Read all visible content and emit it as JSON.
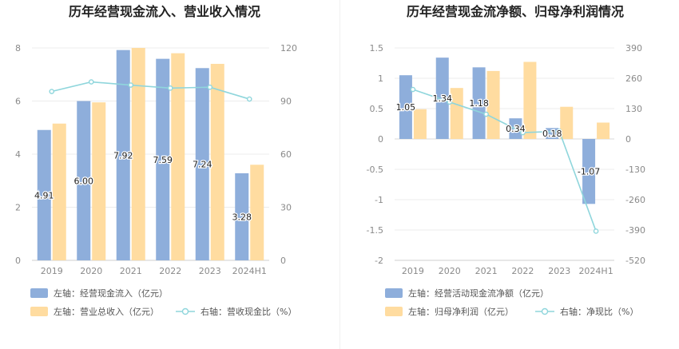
{
  "chart_data": [
    {
      "type": "bar",
      "title": "历年经营现金流入、营业收入情况",
      "categories": [
        "2019",
        "2020",
        "2021",
        "2022",
        "2023",
        "2024H1"
      ],
      "y_left": {
        "min": 0,
        "max": 8,
        "ticks": [
          0,
          2,
          4,
          6,
          8
        ]
      },
      "y_right": {
        "min": 0,
        "max": 120,
        "ticks": [
          0,
          30,
          60,
          90,
          120
        ]
      },
      "series": [
        {
          "name": "左轴：经营现金流入（亿元）",
          "kind": "bar",
          "axis": "left",
          "color": "#8eaedb",
          "values": [
            4.91,
            6.0,
            7.92,
            7.59,
            7.24,
            3.28
          ],
          "labels": [
            "4.91",
            "6.00",
            "7.92",
            "7.59",
            "7.24",
            "3.28"
          ]
        },
        {
          "name": "左轴：营业总收入（亿元）",
          "kind": "bar",
          "axis": "left",
          "color": "#ffdca0",
          "values": [
            5.15,
            5.95,
            8.0,
            7.8,
            7.4,
            3.6
          ]
        },
        {
          "name": "右轴：营收现金比（%）",
          "kind": "line",
          "axis": "right",
          "color": "#8fd6dc",
          "values": [
            95.4,
            100.8,
            99.0,
            97.3,
            97.8,
            91.1
          ]
        }
      ]
    },
    {
      "type": "bar",
      "title": "历年经营现金流净额、归母净利润情况",
      "categories": [
        "2019",
        "2020",
        "2021",
        "2022",
        "2023",
        "2024H1"
      ],
      "y_left": {
        "min": -2,
        "max": 1.5,
        "ticks": [
          -2,
          -1.5,
          -1,
          -0.5,
          0,
          0.5,
          1,
          1.5
        ]
      },
      "y_right": {
        "min": -520,
        "max": 390,
        "ticks": [
          -520,
          -390,
          -260,
          -130,
          0,
          130,
          260,
          390
        ]
      },
      "series": [
        {
          "name": "左轴：经营活动现金流净额（亿元）",
          "kind": "bar",
          "axis": "left",
          "color": "#8eaedb",
          "values": [
            1.05,
            1.34,
            1.18,
            0.34,
            0.18,
            -1.07
          ],
          "labels": [
            "1.05",
            "1.34",
            "1.18",
            "0.34",
            "0.18",
            "-1.07"
          ]
        },
        {
          "name": "左轴：归母净利润（亿元）",
          "kind": "bar",
          "axis": "left",
          "color": "#ffdca0",
          "values": [
            0.49,
            0.84,
            1.12,
            1.27,
            0.53,
            0.27
          ]
        },
        {
          "name": "右轴：净现比（%）",
          "kind": "line",
          "axis": "right",
          "color": "#8fd6dc",
          "values": [
            212,
            158,
            106,
            27,
            33,
            -395
          ]
        }
      ]
    }
  ]
}
